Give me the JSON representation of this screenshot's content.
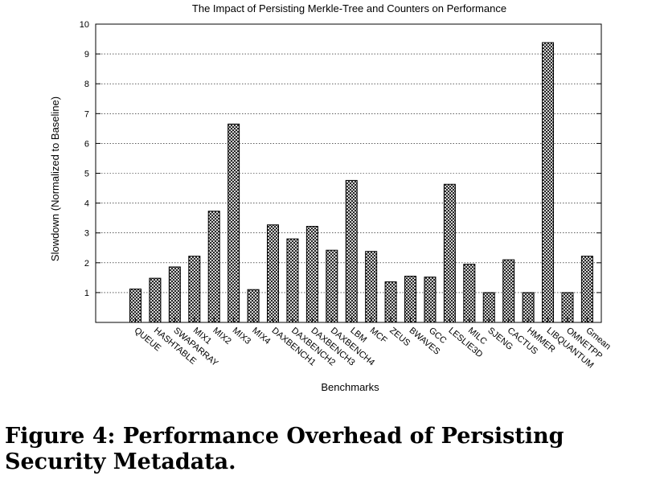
{
  "chart_data": {
    "type": "bar",
    "title": "The Impact of Persisting Merkle-Tree and Counters on Performance",
    "xlabel": "Benchmarks",
    "ylabel": "Slowdown (Normalized to Baseline)",
    "ylim": [
      0,
      10
    ],
    "yticks": [
      1,
      2,
      3,
      4,
      5,
      6,
      7,
      8,
      9,
      10
    ],
    "grid": true,
    "bar_fill": "crosshatch",
    "categories": [
      "QUEUE",
      "HASHTABLE",
      "SWAPARRAY",
      "MIX1",
      "MIX2",
      "MIX3",
      "MIX4",
      "DAXBENCH1",
      "DAXBENCH2",
      "DAXBENCH3",
      "DAXBENCH4",
      "LBM",
      "MCF",
      "ZEUS",
      "BWAVES",
      "GCC",
      "LESLIE3D",
      "MILC",
      "SJENG",
      "CACTUS",
      "HMMER",
      "LIBQUANTUM",
      "OMNETPP",
      "Gmean"
    ],
    "values": [
      1.12,
      1.48,
      1.86,
      2.22,
      3.73,
      6.65,
      1.1,
      3.27,
      2.8,
      3.22,
      2.42,
      4.76,
      2.38,
      1.36,
      1.55,
      1.52,
      4.63,
      1.95,
      1.0,
      2.1,
      1.0,
      9.38,
      1.0,
      2.22
    ]
  },
  "caption": "Figure 4: Performance Overhead of Persisting Security Metadata."
}
